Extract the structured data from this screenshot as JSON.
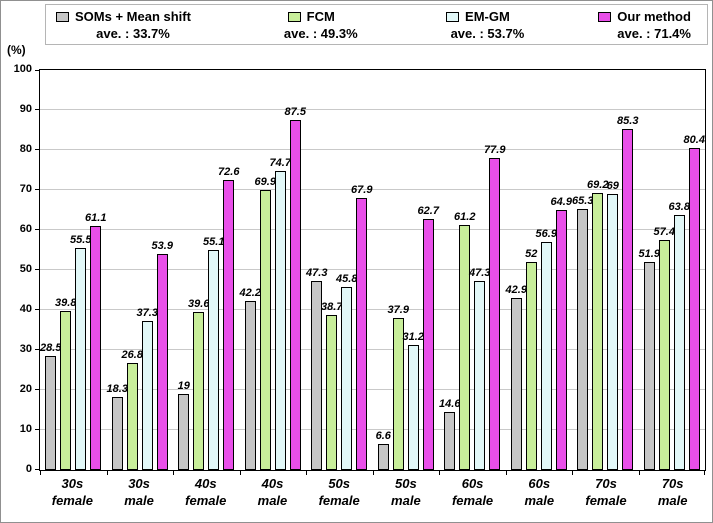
{
  "y_axis_unit": "(%)",
  "legend": [
    {
      "name": "SOMs + Mean shift",
      "ave": "ave. : 33.7%",
      "color": "#c6c6c6"
    },
    {
      "name": "FCM",
      "ave": "ave. : 49.3%",
      "color": "#c8ee9a"
    },
    {
      "name": "EM-GM",
      "ave": "ave. : 53.7%",
      "color": "#e2f8f8",
      "pattern": "vertical-stripes"
    },
    {
      "name": "Our method",
      "ave": "ave. : 71.4%",
      "color": "#e94fe9"
    }
  ],
  "chart_data": {
    "type": "bar",
    "title": "",
    "ylabel": "(%)",
    "xlabel": "",
    "ylim": [
      0,
      100
    ],
    "yticks": [
      0,
      10,
      20,
      30,
      40,
      50,
      60,
      70,
      80,
      90,
      100
    ],
    "grid": true,
    "legend_position": "top",
    "categories": [
      {
        "line1": "30s",
        "line2": "female"
      },
      {
        "line1": "30s",
        "line2": "male"
      },
      {
        "line1": "40s",
        "line2": "female"
      },
      {
        "line1": "40s",
        "line2": "male"
      },
      {
        "line1": "50s",
        "line2": "female"
      },
      {
        "line1": "50s",
        "line2": "male"
      },
      {
        "line1": "60s",
        "line2": "female"
      },
      {
        "line1": "60s",
        "line2": "male"
      },
      {
        "line1": "70s",
        "line2": "female"
      },
      {
        "line1": "70s",
        "line2": "male"
      }
    ],
    "series": [
      {
        "name": "SOMs + Mean shift",
        "average": 33.7,
        "color": "#c6c6c6",
        "values": [
          28.5,
          18.3,
          19,
          42.2,
          47.3,
          6.6,
          14.6,
          42.9,
          65.3,
          51.9
        ]
      },
      {
        "name": "FCM",
        "average": 49.3,
        "color": "#c8ee9a",
        "values": [
          39.8,
          26.8,
          39.6,
          69.9,
          38.7,
          37.9,
          61.2,
          52,
          69.2,
          57.4
        ]
      },
      {
        "name": "EM-GM",
        "average": 53.7,
        "color": "#e2f8f8",
        "pattern": "vertical-stripes",
        "values": [
          55.5,
          37.3,
          55.1,
          74.7,
          45.8,
          31.2,
          47.3,
          56.9,
          69,
          63.8
        ]
      },
      {
        "name": "Our method",
        "average": 71.4,
        "color": "#e94fe9",
        "values": [
          61.1,
          53.9,
          72.6,
          87.5,
          67.9,
          62.7,
          77.9,
          64.9,
          85.3,
          80.4
        ]
      }
    ]
  }
}
